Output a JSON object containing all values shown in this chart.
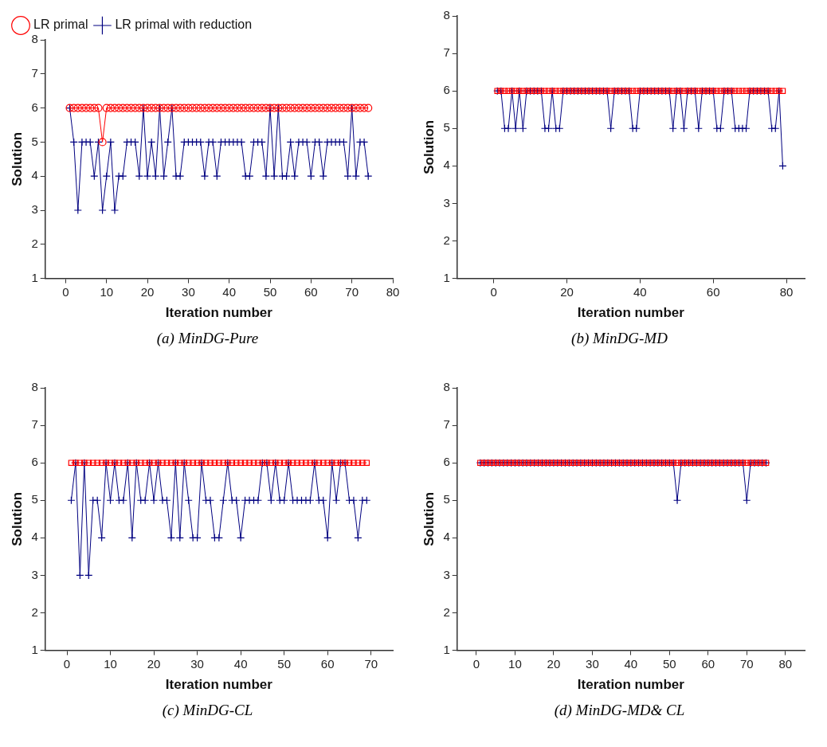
{
  "chart_data": [
    {
      "type": "line",
      "xlabel": "Iteration number",
      "ylabel": "Solution",
      "annotations": [
        "(a) MinDG-Pure"
      ],
      "xlim": [
        -5,
        80
      ],
      "xticks": [
        0,
        10,
        20,
        30,
        40,
        50,
        60,
        70,
        80
      ],
      "ylim": [
        1,
        8
      ],
      "yticks": [
        1,
        2,
        3,
        4,
        5,
        6,
        7,
        8
      ],
      "grid": false,
      "legend": "top left",
      "line_style": "solid",
      "x": [
        1,
        2,
        3,
        4,
        5,
        6,
        7,
        8,
        9,
        10,
        11,
        12,
        13,
        14,
        15,
        16,
        17,
        18,
        19,
        20,
        21,
        22,
        23,
        24,
        25,
        26,
        27,
        28,
        29,
        30,
        31,
        32,
        33,
        34,
        35,
        36,
        37,
        38,
        39,
        40,
        41,
        42,
        43,
        44,
        45,
        46,
        47,
        48,
        49,
        50,
        51,
        52,
        53,
        54,
        55,
        56,
        57,
        58,
        59,
        60,
        61,
        62,
        63,
        64,
        65,
        66,
        67,
        68,
        69,
        70,
        71,
        72,
        73,
        74
      ],
      "series": [
        {
          "name": "LR primal",
          "color": "#ff0000",
          "marker": "circle",
          "values": [
            6,
            6,
            6,
            6,
            6,
            6,
            6,
            6,
            5,
            6,
            6,
            6,
            6,
            6,
            6,
            6,
            6,
            6,
            6,
            6,
            6,
            6,
            6,
            6,
            6,
            6,
            6,
            6,
            6,
            6,
            6,
            6,
            6,
            6,
            6,
            6,
            6,
            6,
            6,
            6,
            6,
            6,
            6,
            6,
            6,
            6,
            6,
            6,
            6,
            6,
            6,
            6,
            6,
            6,
            6,
            6,
            6,
            6,
            6,
            6,
            6,
            6,
            6,
            6,
            6,
            6,
            6,
            6,
            6,
            6,
            6,
            6,
            6,
            6
          ]
        },
        {
          "name": "LR primal with reduction",
          "color": "#000080",
          "marker": "cross",
          "values": [
            6,
            5,
            3,
            5,
            5,
            5,
            4,
            5,
            3,
            4,
            5,
            3,
            4,
            4,
            5,
            5,
            5,
            4,
            6,
            4,
            5,
            4,
            6,
            4,
            5,
            6,
            4,
            4,
            5,
            5,
            5,
            5,
            5,
            4,
            5,
            5,
            4,
            5,
            5,
            5,
            5,
            5,
            5,
            4,
            4,
            5,
            5,
            5,
            4,
            6,
            4,
            6,
            4,
            4,
            5,
            4,
            5,
            5,
            5,
            4,
            5,
            5,
            4,
            5,
            5,
            5,
            5,
            5,
            4,
            6,
            4,
            5,
            5,
            4
          ]
        }
      ]
    },
    {
      "type": "line",
      "xlabel": "Iteration number",
      "ylabel": "Solution",
      "annotations": [
        "(b) MinDG-MD"
      ],
      "xlim": [
        -10,
        85
      ],
      "xticks": [
        0,
        20,
        40,
        60,
        80
      ],
      "ylim": [
        1,
        8
      ],
      "yticks": [
        1,
        2,
        3,
        4,
        5,
        6,
        7,
        8
      ],
      "grid": false,
      "legend": false,
      "line_style": "solid",
      "x": [
        1,
        2,
        3,
        4,
        5,
        6,
        7,
        8,
        9,
        10,
        11,
        12,
        13,
        14,
        15,
        16,
        17,
        18,
        19,
        20,
        21,
        22,
        23,
        24,
        25,
        26,
        27,
        28,
        29,
        30,
        31,
        32,
        33,
        34,
        35,
        36,
        37,
        38,
        39,
        40,
        41,
        42,
        43,
        44,
        45,
        46,
        47,
        48,
        49,
        50,
        51,
        52,
        53,
        54,
        55,
        56,
        57,
        58,
        59,
        60,
        61,
        62,
        63,
        64,
        65,
        66,
        67,
        68,
        69,
        70,
        71,
        72,
        73,
        74,
        75,
        76,
        77,
        78,
        79
      ],
      "series": [
        {
          "color": "#ff0000",
          "marker": "square",
          "values": [
            6,
            6,
            6,
            6,
            6,
            6,
            6,
            6,
            6,
            6,
            6,
            6,
            6,
            6,
            6,
            6,
            6,
            6,
            6,
            6,
            6,
            6,
            6,
            6,
            6,
            6,
            6,
            6,
            6,
            6,
            6,
            6,
            6,
            6,
            6,
            6,
            6,
            6,
            6,
            6,
            6,
            6,
            6,
            6,
            6,
            6,
            6,
            6,
            6,
            6,
            6,
            6,
            6,
            6,
            6,
            6,
            6,
            6,
            6,
            6,
            6,
            6,
            6,
            6,
            6,
            6,
            6,
            6,
            6,
            6,
            6,
            6,
            6,
            6,
            6,
            6,
            6,
            6,
            6
          ]
        },
        {
          "color": "#000080",
          "marker": "cross",
          "values": [
            6,
            6,
            5,
            5,
            6,
            5,
            6,
            5,
            6,
            6,
            6,
            6,
            6,
            5,
            5,
            6,
            5,
            5,
            6,
            6,
            6,
            6,
            6,
            6,
            6,
            6,
            6,
            6,
            6,
            6,
            6,
            5,
            6,
            6,
            6,
            6,
            6,
            5,
            5,
            6,
            6,
            6,
            6,
            6,
            6,
            6,
            6,
            6,
            5,
            6,
            6,
            5,
            6,
            6,
            6,
            5,
            6,
            6,
            6,
            6,
            5,
            5,
            6,
            6,
            6,
            5,
            5,
            5,
            5,
            6,
            6,
            6,
            6,
            6,
            6,
            5,
            5,
            6,
            4
          ]
        }
      ]
    },
    {
      "type": "line",
      "xlabel": "Iteration number",
      "ylabel": "Solution",
      "annotations": [
        "(c) MinDG-CL"
      ],
      "xlim": [
        -5,
        75
      ],
      "xticks": [
        0,
        10,
        20,
        30,
        40,
        50,
        60,
        70
      ],
      "ylim": [
        1,
        8
      ],
      "yticks": [
        1,
        2,
        3,
        4,
        5,
        6,
        7,
        8
      ],
      "grid": false,
      "legend": false,
      "line_style": "solid",
      "x": [
        1,
        2,
        3,
        4,
        5,
        6,
        7,
        8,
        9,
        10,
        11,
        12,
        13,
        14,
        15,
        16,
        17,
        18,
        19,
        20,
        21,
        22,
        23,
        24,
        25,
        26,
        27,
        28,
        29,
        30,
        31,
        32,
        33,
        34,
        35,
        36,
        37,
        38,
        39,
        40,
        41,
        42,
        43,
        44,
        45,
        46,
        47,
        48,
        49,
        50,
        51,
        52,
        53,
        54,
        55,
        56,
        57,
        58,
        59,
        60,
        61,
        62,
        63,
        64,
        65,
        66,
        67,
        68,
        69
      ],
      "series": [
        {
          "color": "#ff0000",
          "marker": "square",
          "values": [
            6,
            6,
            6,
            6,
            6,
            6,
            6,
            6,
            6,
            6,
            6,
            6,
            6,
            6,
            6,
            6,
            6,
            6,
            6,
            6,
            6,
            6,
            6,
            6,
            6,
            6,
            6,
            6,
            6,
            6,
            6,
            6,
            6,
            6,
            6,
            6,
            6,
            6,
            6,
            6,
            6,
            6,
            6,
            6,
            6,
            6,
            6,
            6,
            6,
            6,
            6,
            6,
            6,
            6,
            6,
            6,
            6,
            6,
            6,
            6,
            6,
            6,
            6,
            6,
            6,
            6,
            6,
            6,
            6
          ]
        },
        {
          "color": "#000080",
          "marker": "cross",
          "values": [
            5,
            6,
            3,
            6,
            3,
            5,
            5,
            4,
            6,
            5,
            6,
            5,
            5,
            6,
            4,
            6,
            5,
            5,
            6,
            5,
            6,
            5,
            5,
            4,
            6,
            4,
            6,
            5,
            4,
            4,
            6,
            5,
            5,
            4,
            4,
            5,
            6,
            5,
            5,
            4,
            5,
            5,
            5,
            5,
            6,
            6,
            5,
            6,
            5,
            5,
            6,
            5,
            5,
            5,
            5,
            5,
            6,
            5,
            5,
            4,
            6,
            5,
            6,
            6,
            5,
            5,
            4,
            5,
            5
          ]
        }
      ]
    },
    {
      "type": "line",
      "xlabel": "Iteration number",
      "ylabel": "Solution",
      "annotations": [
        "(d) MinDG-MD& CL"
      ],
      "xlim": [
        -5,
        85
      ],
      "xticks": [
        0,
        10,
        20,
        30,
        40,
        50,
        60,
        70,
        80
      ],
      "ylim": [
        1,
        8
      ],
      "yticks": [
        1,
        2,
        3,
        4,
        5,
        6,
        7,
        8
      ],
      "grid": false,
      "legend": false,
      "line_style": "solid",
      "x": [
        1,
        2,
        3,
        4,
        5,
        6,
        7,
        8,
        9,
        10,
        11,
        12,
        13,
        14,
        15,
        16,
        17,
        18,
        19,
        20,
        21,
        22,
        23,
        24,
        25,
        26,
        27,
        28,
        29,
        30,
        31,
        32,
        33,
        34,
        35,
        36,
        37,
        38,
        39,
        40,
        41,
        42,
        43,
        44,
        45,
        46,
        47,
        48,
        49,
        50,
        51,
        52,
        53,
        54,
        55,
        56,
        57,
        58,
        59,
        60,
        61,
        62,
        63,
        64,
        65,
        66,
        67,
        68,
        69,
        70,
        71,
        72,
        73,
        74,
        75
      ],
      "series": [
        {
          "color": "#ff0000",
          "marker": "square",
          "values": [
            6,
            6,
            6,
            6,
            6,
            6,
            6,
            6,
            6,
            6,
            6,
            6,
            6,
            6,
            6,
            6,
            6,
            6,
            6,
            6,
            6,
            6,
            6,
            6,
            6,
            6,
            6,
            6,
            6,
            6,
            6,
            6,
            6,
            6,
            6,
            6,
            6,
            6,
            6,
            6,
            6,
            6,
            6,
            6,
            6,
            6,
            6,
            6,
            6,
            6,
            6,
            6,
            6,
            6,
            6,
            6,
            6,
            6,
            6,
            6,
            6,
            6,
            6,
            6,
            6,
            6,
            6,
            6,
            6,
            6,
            6,
            6,
            6,
            6,
            6
          ]
        },
        {
          "color": "#000080",
          "marker": "cross",
          "values": [
            6,
            6,
            6,
            6,
            6,
            6,
            6,
            6,
            6,
            6,
            6,
            6,
            6,
            6,
            6,
            6,
            6,
            6,
            6,
            6,
            6,
            6,
            6,
            6,
            6,
            6,
            6,
            6,
            6,
            6,
            6,
            6,
            6,
            6,
            6,
            6,
            6,
            6,
            6,
            6,
            6,
            6,
            6,
            6,
            6,
            6,
            6,
            6,
            6,
            6,
            6,
            5,
            6,
            6,
            6,
            6,
            6,
            6,
            6,
            6,
            6,
            6,
            6,
            6,
            6,
            6,
            6,
            6,
            6,
            5,
            6,
            6,
            6,
            6,
            6
          ]
        }
      ]
    }
  ]
}
